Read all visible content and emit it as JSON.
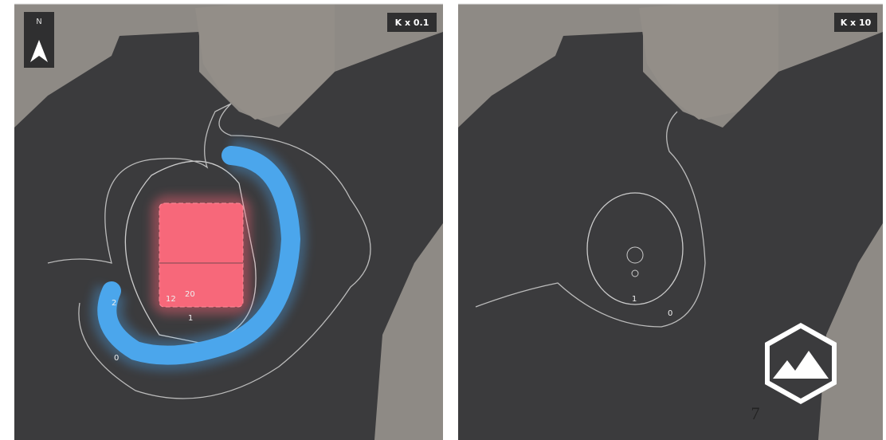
{
  "north_arrow": "N",
  "panels": [
    {
      "label": "K x 0.1",
      "contour_labels": [
        "20",
        "12",
        "2",
        "1",
        "0"
      ]
    },
    {
      "label": "K x 10",
      "contour_labels": [
        "1",
        "0"
      ]
    }
  ],
  "page_number": "7"
}
